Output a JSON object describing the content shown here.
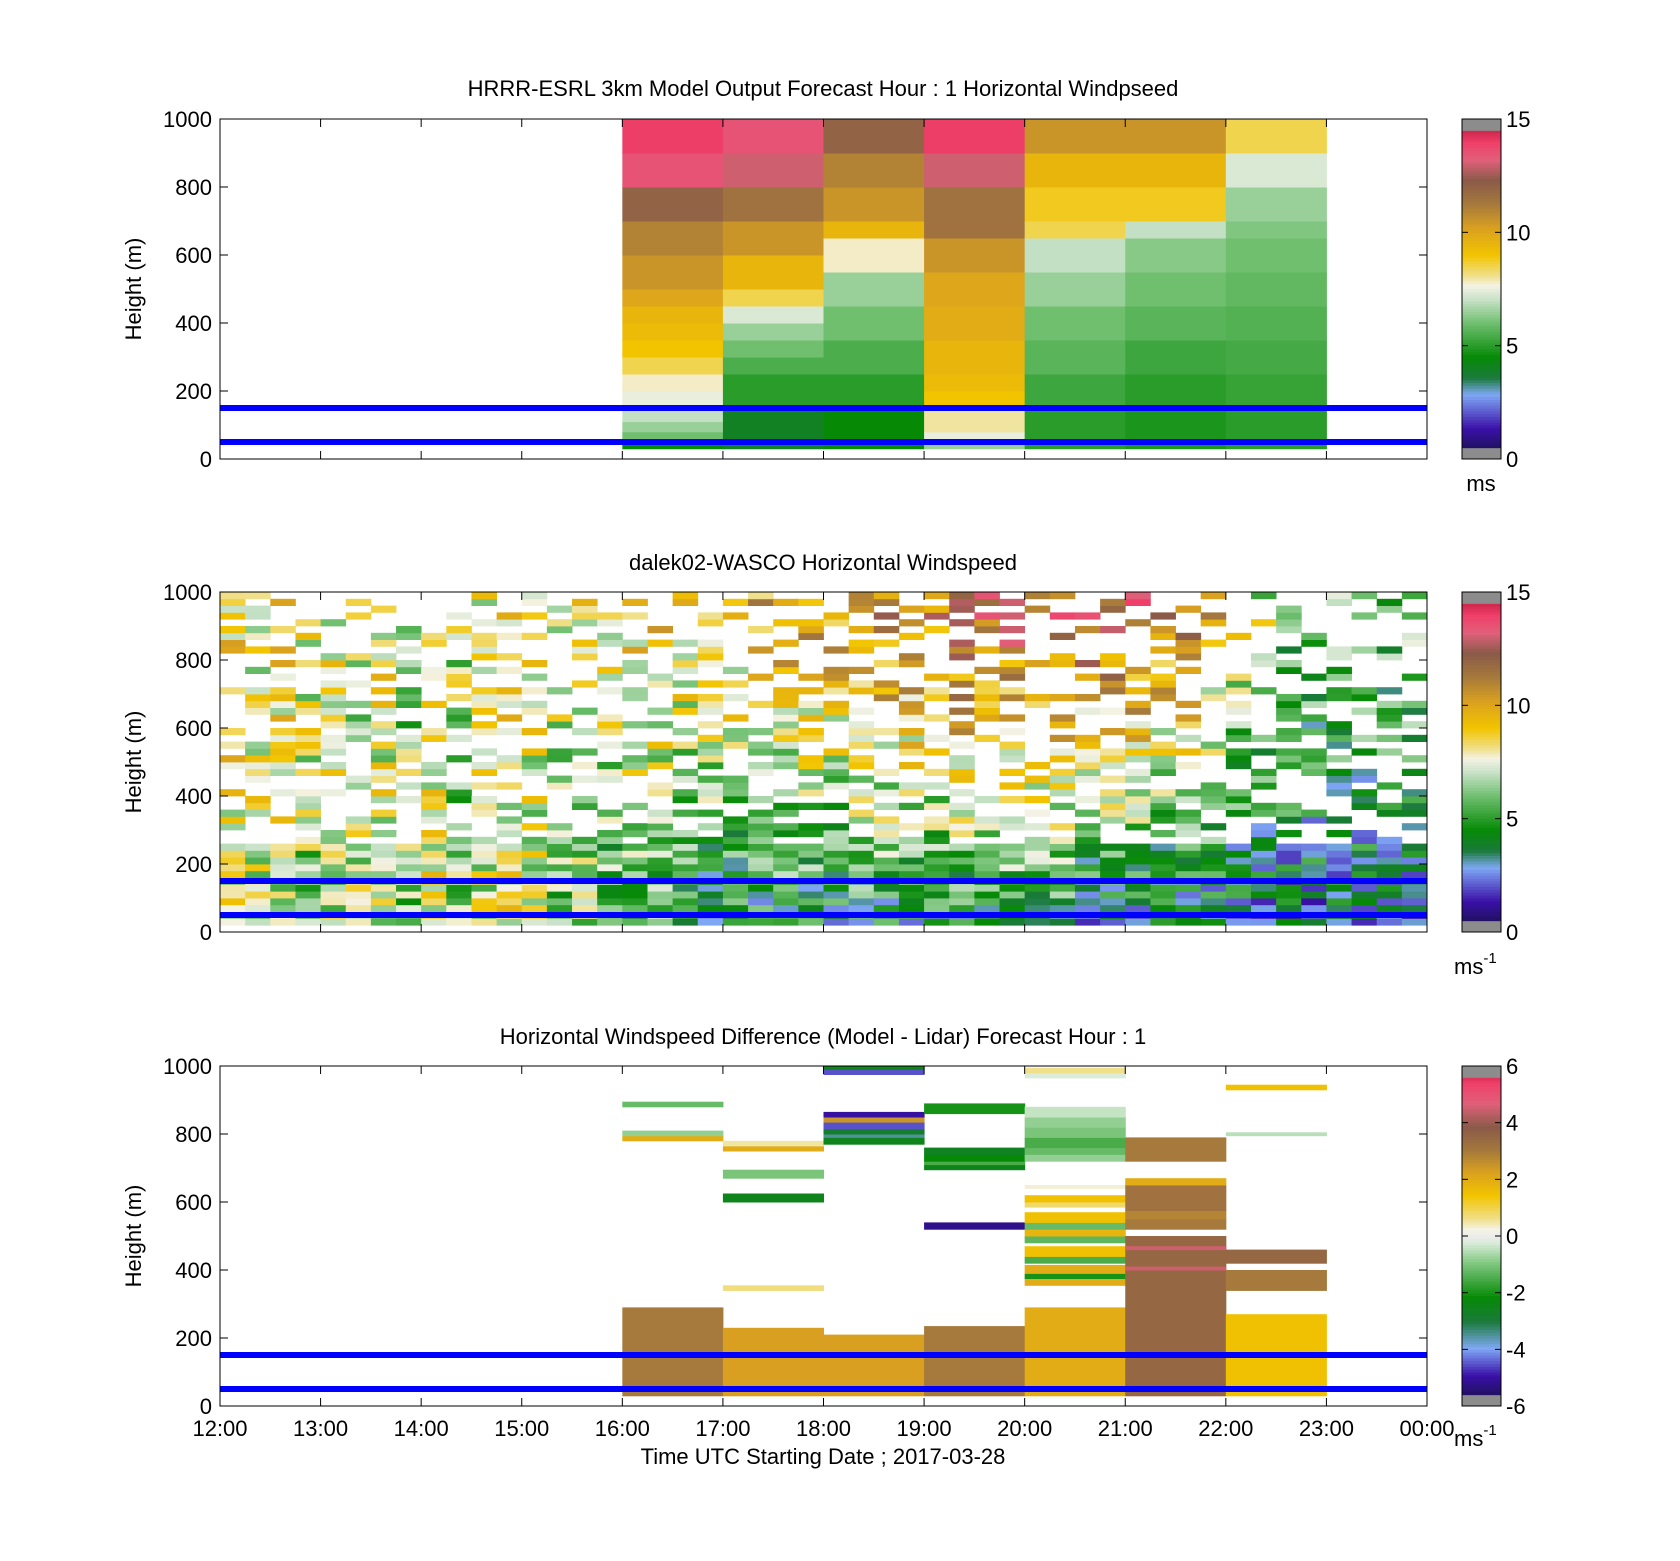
{
  "figure": {
    "xlabel": "Time UTC  Starting Date ; 2017-03-28",
    "x_tick_labels": [
      "12:00",
      "13:00",
      "14:00",
      "15:00",
      "16:00",
      "17:00",
      "18:00",
      "19:00",
      "20:00",
      "21:00",
      "22:00",
      "23:00",
      "00:00"
    ]
  },
  "chart_data": [
    {
      "type": "heatmap",
      "title": "HRRR-ESRL 3km Model Output   Forecast Hour : 1 Horizontal Windpseed",
      "ylabel": "Height (m)",
      "xlabel": "",
      "ylim": [
        0,
        1000
      ],
      "y_ticks": [
        "0",
        "200",
        "400",
        "600",
        "800",
        "1000"
      ],
      "x_range_hours": [
        12,
        24
      ],
      "colorbar": {
        "range": [
          0,
          15
        ],
        "ticks": [
          "0",
          "5",
          "10",
          "15"
        ],
        "unit": "ms"
      },
      "reference_lines_m": [
        50,
        150
      ],
      "reference_line_color": "#0000ff",
      "columns": [
        {
          "t_start": 16,
          "t_end": 17,
          "cells": [
            [
              30,
              50,
              4.5
            ],
            [
              50,
              80,
              6
            ],
            [
              80,
              110,
              6.5
            ],
            [
              110,
              150,
              7
            ],
            [
              150,
              200,
              7.5
            ],
            [
              200,
              250,
              7.8
            ],
            [
              250,
              300,
              8.5
            ],
            [
              300,
              350,
              9
            ],
            [
              350,
              400,
              9.3
            ],
            [
              400,
              450,
              9.5
            ],
            [
              450,
              500,
              10
            ],
            [
              500,
              600,
              10.5
            ],
            [
              600,
              700,
              11
            ],
            [
              700,
              800,
              12
            ],
            [
              800,
              900,
              13.5
            ],
            [
              900,
              1000,
              14
            ]
          ]
        },
        {
          "t_start": 17,
          "t_end": 18,
          "cells": [
            [
              30,
              50,
              4
            ],
            [
              50,
              150,
              4
            ],
            [
              150,
              250,
              5
            ],
            [
              250,
              300,
              5.5
            ],
            [
              300,
              350,
              6
            ],
            [
              350,
              400,
              6.5
            ],
            [
              400,
              450,
              7.3
            ],
            [
              450,
              500,
              8.5
            ],
            [
              500,
              600,
              9.5
            ],
            [
              600,
              700,
              10.5
            ],
            [
              700,
              800,
              11.5
            ],
            [
              800,
              900,
              13
            ],
            [
              900,
              1000,
              13.5
            ]
          ]
        },
        {
          "t_start": 18,
          "t_end": 19,
          "cells": [
            [
              30,
              50,
              4.5
            ],
            [
              50,
              150,
              4.5
            ],
            [
              150,
              250,
              5
            ],
            [
              250,
              350,
              5.5
            ],
            [
              350,
              450,
              6
            ],
            [
              450,
              550,
              6.5
            ],
            [
              550,
              650,
              7.8
            ],
            [
              650,
              700,
              9.5
            ],
            [
              700,
              800,
              10.5
            ],
            [
              800,
              900,
              11
            ],
            [
              900,
              1000,
              12
            ]
          ]
        },
        {
          "t_start": 19,
          "t_end": 20,
          "cells": [
            [
              30,
              50,
              6.5
            ],
            [
              50,
              80,
              7.5
            ],
            [
              80,
              150,
              8
            ],
            [
              150,
              200,
              9
            ],
            [
              200,
              250,
              9.3
            ],
            [
              250,
              350,
              9.5
            ],
            [
              350,
              450,
              9.8
            ],
            [
              450,
              550,
              10
            ],
            [
              550,
              650,
              10.5
            ],
            [
              650,
              800,
              11.5
            ],
            [
              800,
              900,
              13
            ],
            [
              900,
              1000,
              14
            ]
          ]
        },
        {
          "t_start": 20,
          "t_end": 21,
          "cells": [
            [
              30,
              50,
              5
            ],
            [
              50,
              150,
              5
            ],
            [
              150,
              250,
              5.3
            ],
            [
              250,
              350,
              5.7
            ],
            [
              350,
              450,
              6
            ],
            [
              450,
              550,
              6.5
            ],
            [
              550,
              650,
              7
            ],
            [
              650,
              700,
              8.5
            ],
            [
              700,
              800,
              8.8
            ],
            [
              800,
              900,
              9.5
            ],
            [
              900,
              1000,
              10.5
            ]
          ]
        },
        {
          "t_start": 21,
          "t_end": 22,
          "cells": [
            [
              30,
              50,
              4.8
            ],
            [
              50,
              150,
              4.8
            ],
            [
              150,
              250,
              5
            ],
            [
              250,
              350,
              5.3
            ],
            [
              350,
              450,
              5.7
            ],
            [
              450,
              550,
              6
            ],
            [
              550,
              650,
              6.3
            ],
            [
              650,
              700,
              7
            ],
            [
              700,
              800,
              8.8
            ],
            [
              800,
              900,
              9.5
            ],
            [
              900,
              1000,
              10.5
            ]
          ]
        },
        {
          "t_start": 22,
          "t_end": 23,
          "cells": [
            [
              30,
              50,
              5
            ],
            [
              50,
              150,
              5
            ],
            [
              150,
              250,
              5.2
            ],
            [
              250,
              350,
              5.4
            ],
            [
              350,
              450,
              5.6
            ],
            [
              450,
              550,
              5.8
            ],
            [
              550,
              650,
              6
            ],
            [
              650,
              700,
              6.2
            ],
            [
              700,
              800,
              6.5
            ],
            [
              800,
              900,
              7.3
            ],
            [
              900,
              1000,
              8.5
            ]
          ]
        }
      ]
    },
    {
      "type": "heatmap",
      "title": "dalek02-WASCO  Horizontal Windspeed",
      "ylabel": "Height (m)",
      "xlabel": "",
      "ylim": [
        0,
        1000
      ],
      "y_ticks": [
        "0",
        "200",
        "400",
        "600",
        "800",
        "1000"
      ],
      "x_range_hours": [
        12,
        24
      ],
      "colorbar": {
        "range": [
          0,
          15
        ],
        "ticks": [
          "0",
          "5",
          "10",
          "15"
        ],
        "unit": "ms",
        "unit_exponent": "-1"
      },
      "reference_lines_m": [
        50,
        150
      ],
      "reference_line_color": "#0000ff",
      "profile_step_hours": 0.25,
      "profile_start_hour": 12.0,
      "profile_end_hour": 23.25,
      "gate_m": 20,
      "min_height_m": 20,
      "max_height_m": 1000,
      "profiles_mean_speed": [
        [
          9,
          7
        ],
        [
          8,
          7
        ],
        [
          9,
          7
        ],
        [
          8,
          6
        ],
        [
          8,
          7
        ],
        [
          7,
          7
        ],
        [
          8,
          7
        ],
        [
          7,
          6
        ],
        [
          8,
          8
        ],
        [
          7,
          6
        ],
        [
          8,
          7
        ],
        [
          8,
          8
        ],
        [
          8,
          7
        ],
        [
          8,
          6
        ],
        [
          8,
          6
        ],
        [
          8,
          5
        ],
        [
          9,
          5
        ],
        [
          9,
          5
        ],
        [
          9,
          4
        ],
        [
          9,
          4
        ],
        [
          9,
          4
        ],
        [
          10,
          4
        ],
        [
          10,
          4
        ],
        [
          10,
          4
        ],
        [
          10,
          4
        ],
        [
          11,
          4
        ],
        [
          11,
          4
        ],
        [
          11,
          4
        ],
        [
          11,
          4
        ],
        [
          12,
          4
        ],
        [
          12,
          4
        ],
        [
          12,
          4
        ],
        [
          12,
          4
        ],
        [
          12,
          4
        ],
        [
          12,
          3
        ],
        [
          12,
          3
        ],
        [
          12,
          3
        ],
        [
          11,
          3
        ],
        [
          11,
          3
        ],
        [
          10,
          3
        ],
        [
          8,
          3
        ],
        [
          7,
          3
        ],
        [
          6,
          3
        ],
        [
          6,
          3
        ],
        [
          6,
          3
        ],
        [
          6,
          3
        ],
        [
          6,
          3
        ],
        [
          6,
          3
        ]
      ]
    },
    {
      "type": "heatmap",
      "title": "Horizontal Windspeed Difference (Model - Lidar) Forecast Hour : 1",
      "ylabel": "Height (m)",
      "xlabel": "Time UTC  Starting Date ; 2017-03-28",
      "ylim": [
        0,
        1000
      ],
      "y_ticks": [
        "0",
        "200",
        "400",
        "600",
        "800",
        "1000"
      ],
      "x_range_hours": [
        12,
        24
      ],
      "colorbar": {
        "range": [
          -6,
          6
        ],
        "ticks": [
          "-6",
          "-4",
          "-2",
          "0",
          "2",
          "4",
          "6"
        ],
        "unit": "ms",
        "unit_exponent": "-1"
      },
      "reference_lines_m": [
        50,
        150
      ],
      "reference_line_color": "#0000ff",
      "columns": [
        {
          "t_start": 16,
          "t_end": 17,
          "cells": [
            [
              30,
              290,
              3
            ],
            [
              780,
              795,
              2
            ],
            [
              795,
              810,
              -0.8
            ],
            [
              880,
              895,
              -1.2
            ]
          ]
        },
        {
          "t_start": 17,
          "t_end": 18,
          "cells": [
            [
              30,
              230,
              2.3
            ],
            [
              340,
              355,
              0.7
            ],
            [
              600,
              625,
              -2.5
            ],
            [
              670,
              695,
              -1
            ],
            [
              750,
              765,
              2
            ],
            [
              765,
              780,
              0.5
            ]
          ]
        },
        {
          "t_start": 18,
          "t_end": 19,
          "cells": [
            [
              30,
              210,
              2.3
            ],
            [
              770,
              790,
              -2.5
            ],
            [
              790,
              800,
              -3.5
            ],
            [
              800,
              815,
              -2.8
            ],
            [
              815,
              835,
              -4.5
            ],
            [
              835,
              850,
              2.5
            ],
            [
              850,
              865,
              -5
            ],
            [
              975,
              990,
              -4.5
            ],
            [
              990,
              1005,
              -2.5
            ]
          ]
        },
        {
          "t_start": 19,
          "t_end": 20,
          "cells": [
            [
              30,
              235,
              3
            ],
            [
              520,
              540,
              -5.2
            ],
            [
              695,
              710,
              -2.5
            ],
            [
              710,
              720,
              -1.5
            ],
            [
              720,
              740,
              -2.2
            ],
            [
              740,
              760,
              -2.6
            ],
            [
              860,
              890,
              -2
            ]
          ]
        },
        {
          "t_start": 20,
          "t_end": 21,
          "cells": [
            [
              30,
              290,
              2
            ],
            [
              355,
              375,
              2
            ],
            [
              375,
              390,
              -2
            ],
            [
              390,
              415,
              2
            ],
            [
              420,
              440,
              -1.5
            ],
            [
              440,
              470,
              1.5
            ],
            [
              480,
              500,
              -1.3
            ],
            [
              500,
              520,
              1.8
            ],
            [
              520,
              540,
              -1.2
            ],
            [
              540,
              570,
              1.5
            ],
            [
              585,
              600,
              0.8
            ],
            [
              600,
              620,
              1.5
            ],
            [
              640,
              650,
              0.3
            ],
            [
              720,
              740,
              -0.8
            ],
            [
              740,
              760,
              -1.2
            ],
            [
              760,
              790,
              -1.5
            ],
            [
              790,
              820,
              -1
            ],
            [
              820,
              850,
              -0.8
            ],
            [
              850,
              880,
              -0.4
            ],
            [
              965,
              980,
              -0.2
            ],
            [
              980,
              995,
              0.6
            ]
          ]
        },
        {
          "t_start": 21,
          "t_end": 22,
          "cells": [
            [
              30,
              500,
              3.5
            ],
            [
              400,
              410,
              4.5
            ],
            [
              460,
              470,
              4.5
            ],
            [
              520,
              550,
              3
            ],
            [
              550,
              575,
              2.8
            ],
            [
              575,
              650,
              3.2
            ],
            [
              650,
              670,
              2
            ],
            [
              720,
              790,
              3
            ]
          ]
        },
        {
          "t_start": 22,
          "t_end": 23,
          "cells": [
            [
              30,
              270,
              1.5
            ],
            [
              340,
              400,
              3
            ],
            [
              420,
              460,
              3.5
            ],
            [
              795,
              805,
              -0.5
            ],
            [
              930,
              945,
              1.5
            ]
          ]
        }
      ]
    }
  ]
}
